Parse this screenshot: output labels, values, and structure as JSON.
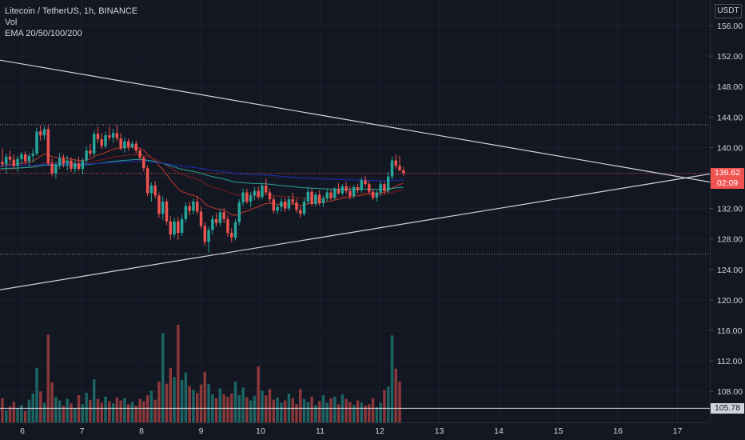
{
  "legend": {
    "symbol": "Litecoin / TetherUS, 1h, BINANCE",
    "volume": "Vol",
    "ema": "EMA 20/50/100/200"
  },
  "price_scale": {
    "currency": "USDT",
    "current_price": "136.62",
    "countdown": "02:09",
    "low_marker": "105.78"
  },
  "colors": {
    "background": "#131722",
    "up": "#26a69a",
    "down": "#ef5350",
    "ema20": "#c0392b",
    "ema50": "#7a1f1f",
    "ema100": "#26a69a",
    "ema200": "#1e2bb8",
    "trendline": "#d1d4dc"
  },
  "chart_data": {
    "type": "candlestick",
    "title": "Litecoin / TetherUS, 1h, BINANCE",
    "x_ticks": [
      "6",
      "7",
      "8",
      "9",
      "10",
      "11",
      "12",
      "13",
      "14",
      "15",
      "16",
      "17"
    ],
    "y_ticks": [
      "156.00",
      "152.00",
      "148.00",
      "144.00",
      "140.00",
      "136.00",
      "132.00",
      "128.00",
      "124.00",
      "120.00",
      "116.00",
      "112.00",
      "108.00"
    ],
    "ylim": [
      104.5,
      158.5
    ],
    "xlim_days": [
      5.6,
      17.6
    ],
    "first_candle_day": 5.6,
    "candle_interval_days": 0.0417,
    "candles": [
      [
        136.8,
        138.5,
        136.2,
        138.1
      ],
      [
        138.1,
        139.9,
        137.4,
        137.8
      ],
      [
        137.8,
        139.2,
        136.6,
        138.8
      ],
      [
        138.8,
        139.6,
        137.9,
        138.4
      ],
      [
        138.4,
        139.1,
        137.2,
        137.6
      ],
      [
        137.6,
        138.9,
        136.8,
        138.5
      ],
      [
        138.5,
        139.4,
        137.9,
        139.1
      ],
      [
        139.1,
        139.5,
        137.8,
        138.2
      ],
      [
        138.2,
        139.3,
        137.5,
        138.9
      ],
      [
        138.9,
        139.8,
        138.1,
        139.2
      ],
      [
        139.2,
        142.6,
        138.9,
        142.1
      ],
      [
        142.1,
        142.9,
        140.9,
        141.6
      ],
      [
        141.6,
        142.8,
        141.0,
        142.4
      ],
      [
        142.4,
        142.9,
        137.6,
        137.9
      ],
      [
        137.9,
        138.6,
        136.2,
        136.6
      ],
      [
        136.6,
        138.1,
        135.9,
        137.7
      ],
      [
        137.7,
        139.3,
        137.2,
        138.6
      ],
      [
        138.6,
        139.1,
        137.4,
        137.9
      ],
      [
        137.9,
        138.9,
        137.0,
        138.3
      ],
      [
        138.3,
        138.7,
        136.8,
        137.2
      ],
      [
        137.2,
        138.4,
        136.6,
        137.9
      ],
      [
        137.9,
        138.8,
        136.9,
        137.2
      ],
      [
        137.2,
        138.6,
        136.5,
        138.3
      ],
      [
        138.3,
        140.2,
        137.9,
        139.6
      ],
      [
        139.6,
        140.5,
        138.8,
        139.2
      ],
      [
        139.2,
        142.2,
        138.9,
        141.8
      ],
      [
        141.8,
        142.7,
        140.6,
        141.1
      ],
      [
        141.1,
        141.9,
        139.8,
        140.2
      ],
      [
        140.2,
        142.1,
        139.9,
        141.6
      ],
      [
        141.6,
        142.8,
        140.9,
        141.3
      ],
      [
        141.3,
        142.4,
        140.6,
        141.9
      ],
      [
        141.9,
        142.9,
        140.8,
        141.2
      ],
      [
        141.2,
        141.9,
        139.6,
        139.9
      ],
      [
        139.9,
        141.3,
        139.3,
        140.8
      ],
      [
        140.8,
        141.2,
        139.6,
        140.1
      ],
      [
        140.1,
        140.9,
        139.8,
        140.5
      ],
      [
        140.5,
        140.9,
        139.2,
        139.6
      ],
      [
        139.6,
        139.9,
        138.3,
        138.7
      ],
      [
        138.7,
        138.9,
        136.9,
        137.3
      ],
      [
        137.3,
        137.6,
        133.6,
        134.0
      ],
      [
        134.0,
        135.4,
        132.9,
        135.0
      ],
      [
        135.0,
        135.6,
        133.3,
        133.7
      ],
      [
        133.7,
        134.1,
        130.8,
        131.3
      ],
      [
        131.3,
        133.6,
        130.5,
        132.9
      ],
      [
        132.9,
        133.3,
        129.8,
        130.3
      ],
      [
        130.3,
        131.0,
        127.9,
        128.6
      ],
      [
        128.6,
        130.8,
        128.2,
        130.3
      ],
      [
        130.3,
        130.9,
        127.9,
        128.8
      ],
      [
        128.8,
        131.2,
        128.4,
        130.6
      ],
      [
        130.6,
        132.8,
        130.2,
        132.3
      ],
      [
        132.3,
        132.9,
        131.1,
        131.7
      ],
      [
        131.7,
        133.3,
        131.2,
        132.9
      ],
      [
        132.9,
        133.6,
        131.2,
        131.6
      ],
      [
        131.6,
        132.3,
        129.3,
        129.7
      ],
      [
        129.7,
        130.2,
        127.1,
        127.6
      ],
      [
        127.6,
        129.6,
        126.2,
        129.2
      ],
      [
        129.2,
        131.1,
        128.6,
        130.6
      ],
      [
        130.6,
        131.4,
        129.6,
        130.1
      ],
      [
        130.1,
        131.9,
        129.7,
        131.5
      ],
      [
        131.5,
        132.0,
        130.1,
        130.6
      ],
      [
        130.6,
        131.1,
        128.3,
        128.8
      ],
      [
        128.8,
        129.4,
        127.6,
        128.2
      ],
      [
        128.2,
        130.6,
        127.8,
        130.2
      ],
      [
        130.2,
        133.2,
        129.8,
        132.8
      ],
      [
        132.8,
        134.6,
        132.3,
        134.1
      ],
      [
        134.1,
        134.6,
        132.6,
        132.9
      ],
      [
        132.9,
        134.2,
        132.2,
        133.7
      ],
      [
        133.7,
        134.8,
        133.1,
        134.3
      ],
      [
        134.3,
        134.9,
        133.2,
        133.5
      ],
      [
        133.5,
        135.4,
        133.2,
        135.0
      ],
      [
        135.0,
        135.9,
        133.8,
        134.1
      ],
      [
        134.1,
        134.6,
        132.8,
        133.2
      ],
      [
        133.2,
        133.6,
        131.3,
        131.7
      ],
      [
        131.7,
        132.6,
        131.2,
        132.2
      ],
      [
        132.2,
        133.4,
        131.6,
        132.9
      ],
      [
        132.9,
        133.4,
        131.6,
        132.0
      ],
      [
        132.0,
        133.6,
        131.7,
        133.2
      ],
      [
        133.2,
        134.1,
        132.5,
        132.8
      ],
      [
        132.8,
        133.3,
        131.4,
        131.8
      ],
      [
        131.8,
        132.3,
        130.8,
        131.3
      ],
      [
        131.3,
        133.4,
        131.0,
        132.9
      ],
      [
        132.9,
        134.8,
        132.5,
        134.2
      ],
      [
        134.2,
        134.6,
        132.3,
        132.6
      ],
      [
        132.6,
        134.1,
        132.3,
        133.8
      ],
      [
        133.8,
        134.4,
        132.4,
        132.7
      ],
      [
        132.7,
        133.7,
        132.2,
        133.3
      ],
      [
        133.3,
        134.6,
        132.9,
        134.1
      ],
      [
        134.1,
        134.5,
        133.1,
        133.4
      ],
      [
        133.4,
        134.8,
        133.1,
        134.5
      ],
      [
        134.5,
        135.3,
        133.8,
        134.0
      ],
      [
        134.0,
        135.2,
        133.7,
        134.9
      ],
      [
        134.9,
        135.5,
        133.9,
        134.3
      ],
      [
        134.3,
        134.9,
        133.2,
        133.6
      ],
      [
        133.6,
        135.1,
        133.3,
        134.8
      ],
      [
        134.8,
        135.2,
        134.0,
        134.4
      ],
      [
        134.4,
        136.1,
        134.1,
        135.7
      ],
      [
        135.7,
        136.3,
        134.9,
        135.2
      ],
      [
        135.2,
        135.6,
        133.9,
        134.2
      ],
      [
        134.2,
        134.6,
        133.1,
        133.4
      ],
      [
        133.4,
        134.4,
        132.9,
        134.1
      ],
      [
        134.1,
        135.6,
        133.6,
        135.2
      ],
      [
        135.2,
        135.5,
        133.9,
        134.3
      ],
      [
        134.3,
        136.8,
        134.0,
        136.2
      ],
      [
        136.2,
        138.8,
        135.8,
        138.3
      ],
      [
        138.3,
        139.1,
        137.2,
        137.6
      ],
      [
        137.6,
        138.9,
        136.9,
        137.0
      ],
      [
        137.0,
        137.4,
        136.3,
        136.62
      ]
    ],
    "volumes": [
      2.4,
      3.2,
      1.6,
      2.1,
      2.7,
      1.8,
      2.3,
      1.5,
      3.0,
      3.8,
      7.2,
      4.1,
      2.6,
      11.6,
      5.3,
      3.4,
      2.9,
      2.2,
      3.1,
      2.5,
      1.9,
      3.6,
      2.4,
      3.9,
      3.0,
      5.7,
      3.1,
      2.6,
      3.4,
      2.8,
      2.5,
      3.3,
      2.9,
      3.2,
      2.4,
      2.7,
      2.2,
      3.1,
      2.8,
      3.6,
      4.2,
      3.0,
      5.4,
      11.8,
      5.1,
      7.2,
      6.0,
      12.9,
      5.6,
      6.6,
      4.8,
      4.3,
      3.9,
      5.0,
      6.7,
      5.1,
      3.7,
      3.2,
      4.5,
      3.7,
      3.4,
      3.8,
      5.4,
      3.6,
      4.6,
      3.3,
      2.9,
      3.5,
      7.4,
      4.2,
      3.6,
      4.4,
      3.0,
      3.3,
      2.6,
      2.9,
      3.8,
      3.2,
      2.4,
      4.4,
      3.1,
      2.7,
      3.4,
      2.3,
      2.8,
      3.6,
      2.6,
      3.2,
      3.4,
      2.4,
      3.7,
      3.1,
      2.7,
      2.3,
      2.9,
      2.6,
      2.2,
      2.4,
      3.2,
      2.0,
      2.6,
      4.3,
      4.7,
      11.5,
      7.1,
      5.4
    ],
    "horizontal_levels": [
      143.0,
      126.0,
      136.62,
      105.78
    ],
    "trendlines": [
      {
        "name": "upper-trendline",
        "from": [
          5.6,
          151.5
        ],
        "to": [
          17.6,
          135.4
        ]
      },
      {
        "name": "lower-trendline",
        "from": [
          5.6,
          121.3
        ],
        "to": [
          17.6,
          136.6
        ]
      }
    ]
  }
}
